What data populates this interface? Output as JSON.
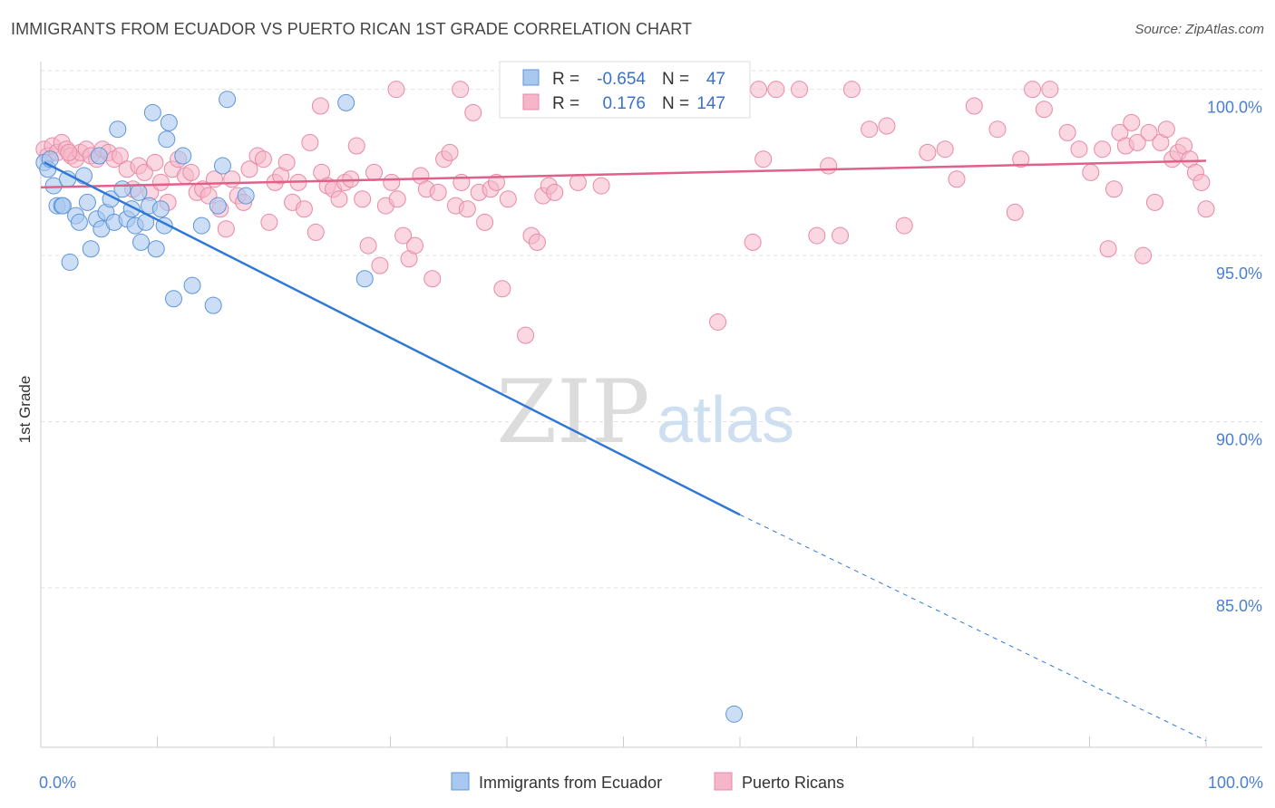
{
  "title": "IMMIGRANTS FROM ECUADOR VS PUERTO RICAN 1ST GRADE CORRELATION CHART",
  "source": "Source: ZipAtlas.com",
  "watermark": {
    "zip": "ZIP",
    "atlas": "atlas"
  },
  "colors": {
    "ecuador_fill": "#a9c8f0",
    "ecuador_stroke": "#5f95d8",
    "ecuador_line": "#2f78d6",
    "pr_fill": "#f6b6c9",
    "pr_stroke": "#e88aa7",
    "pr_line": "#e0608a",
    "grid": "#e2e2e2",
    "tick_text": "#4a7fd0"
  },
  "stats": {
    "ecuador": {
      "r_label": "R =",
      "r": "-0.654",
      "n_label": "N =",
      "n": "47"
    },
    "pr": {
      "r_label": "R =",
      "r": "0.176",
      "n_label": "N =",
      "n": "147"
    }
  },
  "chart_data": {
    "type": "scatter",
    "title": "IMMIGRANTS FROM ECUADOR VS PUERTO RICAN 1ST GRADE CORRELATION CHART",
    "xlabel": "",
    "ylabel": "1st Grade",
    "xlim": [
      0,
      100
    ],
    "ylim": [
      80.2,
      101.0
    ],
    "x_tick_labels": [
      "0.0%",
      "100.0%"
    ],
    "y_ticks": [
      85,
      90,
      95,
      100
    ],
    "y_tick_labels": [
      "85.0%",
      "90.0%",
      "95.0%",
      "100.0%"
    ],
    "grid": true,
    "legend_position": "bottom-center",
    "series": [
      {
        "name": "Immigrants from Ecuador",
        "color": "#a9c8f0",
        "trend": {
          "x": [
            0.3,
            60
          ],
          "y": [
            97.8,
            87.2
          ],
          "dashed_to": [
            100,
            80.4
          ]
        },
        "points": [
          [
            0.3,
            97.8
          ],
          [
            0.6,
            97.6
          ],
          [
            0.8,
            97.9
          ],
          [
            1.1,
            97.1
          ],
          [
            1.4,
            96.5
          ],
          [
            1.8,
            96.5
          ],
          [
            2.3,
            97.3
          ],
          [
            2.5,
            94.8
          ],
          [
            3.0,
            96.2
          ],
          [
            3.3,
            96.0
          ],
          [
            3.7,
            97.4
          ],
          [
            4.0,
            96.6
          ],
          [
            4.3,
            95.2
          ],
          [
            4.8,
            96.1
          ],
          [
            5.2,
            95.8
          ],
          [
            5.6,
            96.3
          ],
          [
            6.0,
            96.7
          ],
          [
            6.3,
            96.0
          ],
          [
            6.6,
            98.8
          ],
          [
            7.0,
            97.0
          ],
          [
            7.4,
            96.1
          ],
          [
            7.8,
            96.4
          ],
          [
            8.1,
            95.9
          ],
          [
            8.4,
            96.9
          ],
          [
            8.6,
            95.4
          ],
          [
            9.0,
            96.0
          ],
          [
            9.3,
            96.5
          ],
          [
            9.6,
            99.3
          ],
          [
            9.9,
            95.2
          ],
          [
            10.3,
            96.4
          ],
          [
            10.6,
            95.9
          ],
          [
            10.8,
            98.5
          ],
          [
            11.0,
            99.0
          ],
          [
            11.4,
            93.7
          ],
          [
            12.2,
            98.0
          ],
          [
            13.0,
            94.1
          ],
          [
            13.8,
            95.9
          ],
          [
            14.8,
            93.5
          ],
          [
            15.2,
            96.5
          ],
          [
            15.6,
            97.7
          ],
          [
            16.0,
            99.7
          ],
          [
            17.6,
            96.8
          ],
          [
            26.2,
            99.6
          ],
          [
            27.8,
            94.3
          ],
          [
            59.5,
            81.2
          ],
          [
            1.9,
            96.5
          ],
          [
            5.0,
            98.0
          ]
        ]
      },
      {
        "name": "Puerto Ricans",
        "color": "#f6b6c9",
        "trend": {
          "x": [
            0,
            100
          ],
          "y": [
            97.05,
            97.85
          ]
        },
        "points": [
          [
            0.3,
            98.2
          ],
          [
            0.6,
            98.0
          ],
          [
            1.0,
            98.3
          ],
          [
            1.4,
            98.1
          ],
          [
            1.8,
            98.4
          ],
          [
            2.2,
            98.2
          ],
          [
            2.6,
            98.0
          ],
          [
            3.0,
            97.9
          ],
          [
            3.4,
            98.1
          ],
          [
            3.9,
            98.2
          ],
          [
            4.3,
            98.0
          ],
          [
            4.8,
            97.9
          ],
          [
            5.3,
            98.2
          ],
          [
            5.8,
            98.1
          ],
          [
            6.3,
            97.9
          ],
          [
            6.8,
            98.0
          ],
          [
            7.4,
            97.6
          ],
          [
            7.9,
            97.0
          ],
          [
            8.4,
            97.7
          ],
          [
            8.9,
            97.5
          ],
          [
            9.4,
            96.9
          ],
          [
            9.8,
            97.8
          ],
          [
            10.3,
            97.2
          ],
          [
            10.9,
            96.6
          ],
          [
            11.3,
            97.6
          ],
          [
            11.8,
            97.9
          ],
          [
            12.4,
            97.4
          ],
          [
            12.9,
            97.5
          ],
          [
            13.4,
            96.9
          ],
          [
            13.9,
            97.0
          ],
          [
            14.4,
            96.8
          ],
          [
            14.9,
            97.3
          ],
          [
            15.4,
            96.4
          ],
          [
            15.9,
            95.8
          ],
          [
            16.4,
            97.3
          ],
          [
            16.9,
            96.8
          ],
          [
            17.4,
            96.6
          ],
          [
            17.9,
            97.6
          ],
          [
            18.6,
            98.0
          ],
          [
            19.1,
            97.9
          ],
          [
            19.6,
            96.0
          ],
          [
            20.1,
            97.2
          ],
          [
            20.6,
            97.4
          ],
          [
            21.1,
            97.8
          ],
          [
            21.6,
            96.6
          ],
          [
            22.1,
            97.2
          ],
          [
            22.6,
            96.4
          ],
          [
            23.1,
            98.4
          ],
          [
            23.6,
            95.7
          ],
          [
            24.1,
            97.5
          ],
          [
            24.6,
            97.1
          ],
          [
            25.1,
            97.0
          ],
          [
            25.6,
            96.7
          ],
          [
            26.1,
            97.2
          ],
          [
            26.6,
            97.3
          ],
          [
            27.1,
            98.3
          ],
          [
            27.6,
            96.7
          ],
          [
            28.1,
            95.3
          ],
          [
            28.6,
            97.5
          ],
          [
            29.1,
            94.7
          ],
          [
            29.6,
            96.5
          ],
          [
            30.1,
            97.2
          ],
          [
            30.6,
            96.7
          ],
          [
            31.1,
            95.6
          ],
          [
            31.6,
            94.9
          ],
          [
            32.1,
            95.3
          ],
          [
            32.6,
            97.4
          ],
          [
            33.1,
            97.0
          ],
          [
            33.6,
            94.3
          ],
          [
            34.1,
            96.9
          ],
          [
            34.6,
            97.9
          ],
          [
            35.1,
            98.1
          ],
          [
            35.6,
            96.5
          ],
          [
            36.1,
            97.2
          ],
          [
            36.6,
            96.4
          ],
          [
            37.1,
            99.3
          ],
          [
            37.6,
            96.9
          ],
          [
            38.1,
            96.0
          ],
          [
            38.6,
            97.0
          ],
          [
            39.1,
            97.2
          ],
          [
            39.6,
            94.0
          ],
          [
            40.1,
            96.7
          ],
          [
            41.6,
            92.6
          ],
          [
            42.1,
            95.6
          ],
          [
            42.6,
            95.4
          ],
          [
            43.1,
            96.8
          ],
          [
            43.6,
            97.1
          ],
          [
            44.1,
            96.9
          ],
          [
            45.6,
            100.0
          ],
          [
            46.1,
            97.2
          ],
          [
            48.1,
            97.1
          ],
          [
            49.6,
            99.8
          ],
          [
            51.1,
            99.9
          ],
          [
            55.1,
            100.0
          ],
          [
            58.1,
            93.0
          ],
          [
            61.1,
            95.4
          ],
          [
            61.6,
            100.0
          ],
          [
            63.1,
            100.0
          ],
          [
            65.1,
            100.0
          ],
          [
            66.6,
            95.6
          ],
          [
            67.6,
            97.7
          ],
          [
            68.6,
            95.6
          ],
          [
            69.6,
            100.0
          ],
          [
            71.1,
            98.8
          ],
          [
            72.6,
            98.9
          ],
          [
            74.1,
            95.9
          ],
          [
            76.1,
            98.1
          ],
          [
            77.6,
            98.2
          ],
          [
            78.6,
            97.3
          ],
          [
            80.1,
            99.5
          ],
          [
            82.1,
            98.8
          ],
          [
            83.6,
            96.3
          ],
          [
            84.1,
            97.9
          ],
          [
            85.1,
            100.0
          ],
          [
            86.1,
            99.4
          ],
          [
            88.1,
            98.7
          ],
          [
            89.1,
            98.2
          ],
          [
            90.1,
            97.5
          ],
          [
            91.1,
            98.2
          ],
          [
            91.6,
            95.2
          ],
          [
            92.1,
            97.0
          ],
          [
            92.6,
            98.7
          ],
          [
            93.1,
            98.3
          ],
          [
            93.6,
            99.0
          ],
          [
            94.1,
            98.4
          ],
          [
            94.6,
            95.0
          ],
          [
            95.1,
            98.7
          ],
          [
            95.6,
            96.6
          ],
          [
            96.1,
            98.4
          ],
          [
            96.6,
            98.8
          ],
          [
            97.1,
            97.9
          ],
          [
            97.6,
            98.1
          ],
          [
            98.1,
            98.3
          ],
          [
            98.6,
            97.9
          ],
          [
            99.1,
            97.5
          ],
          [
            99.6,
            97.2
          ],
          [
            100.0,
            96.4
          ],
          [
            48.6,
            100.0
          ],
          [
            53.1,
            100.0
          ],
          [
            57.6,
            100.0
          ],
          [
            60.1,
            100.0
          ],
          [
            36.0,
            100.0
          ],
          [
            30.5,
            100.0
          ],
          [
            24.0,
            99.5
          ],
          [
            86.6,
            100.0
          ],
          [
            2.4,
            98.1
          ],
          [
            62.0,
            97.9
          ]
        ]
      }
    ]
  },
  "legend": {
    "ecuador_label": "Immigrants from Ecuador",
    "pr_label": "Puerto Ricans"
  }
}
